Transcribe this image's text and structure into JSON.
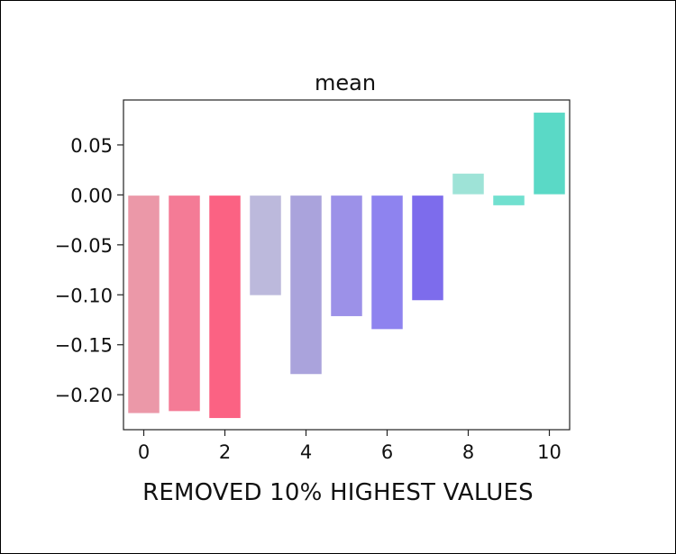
{
  "chart_data": {
    "type": "bar",
    "title": "mean",
    "xlabel": "REMOVED 10% HIGHEST VALUES",
    "ylabel": "",
    "x": [
      0,
      1,
      2,
      3,
      4,
      5,
      6,
      7,
      8,
      9,
      10
    ],
    "values": [
      -0.219,
      -0.217,
      -0.224,
      -0.101,
      -0.18,
      -0.122,
      -0.135,
      -0.106,
      0.022,
      -0.011,
      0.083
    ],
    "colors": [
      "#eb98a8",
      "#f47b96",
      "#fb6283",
      "#bcb9dc",
      "#aaa3dc",
      "#9c91e8",
      "#8e83ef",
      "#7d6cec",
      "#9ee3d7",
      "#71e0cf",
      "#5ad9c6"
    ],
    "xticks": [
      0,
      2,
      4,
      6,
      8,
      10
    ],
    "xtick_labels": [
      "0",
      "2",
      "4",
      "6",
      "8",
      "10"
    ],
    "yticks": [
      0.05,
      0.0,
      -0.05,
      -0.1,
      -0.15,
      -0.2
    ],
    "ytick_labels": [
      "0.05",
      "0.00",
      "−0.05",
      "−0.10",
      "−0.15",
      "−0.20"
    ],
    "xlim": [
      -0.5,
      10.5
    ],
    "ylim": [
      -0.235,
      0.095
    ],
    "grid": false,
    "legend": "none"
  }
}
